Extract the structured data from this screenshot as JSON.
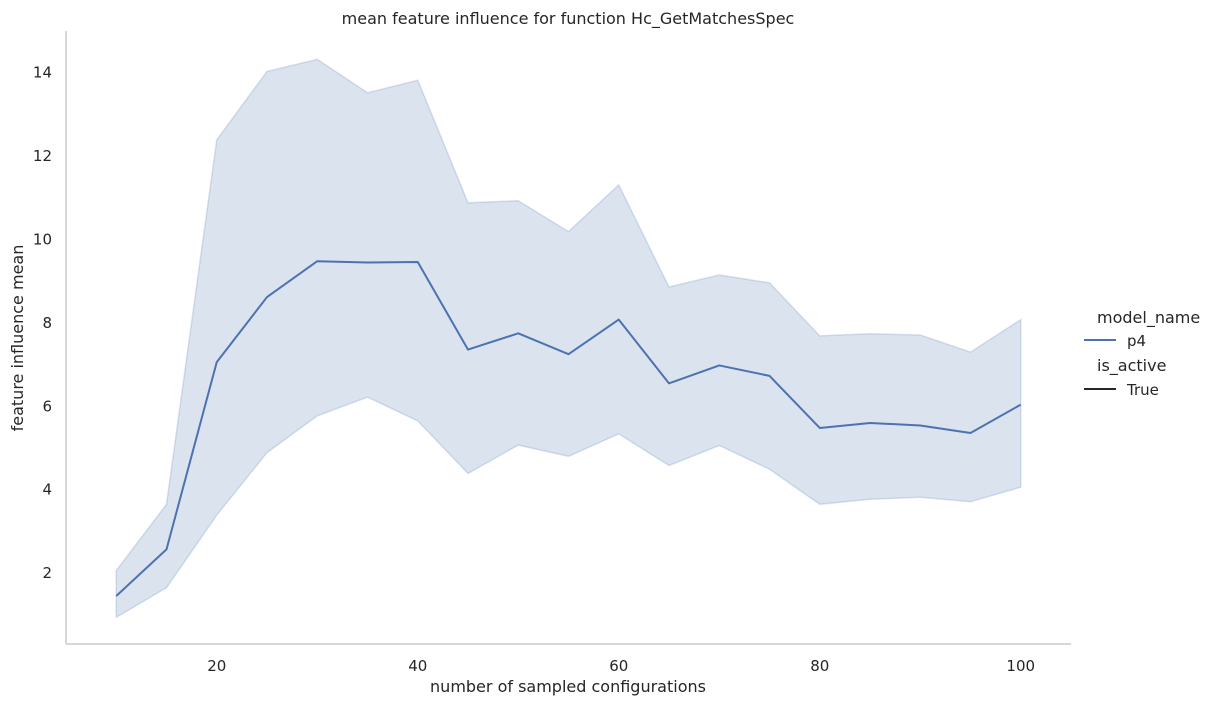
{
  "chart_data": {
    "type": "line",
    "title": "mean feature influence for function Hc_GetMatchesSpec",
    "xlabel": "number of sampled configurations",
    "ylabel": "feature influence mean",
    "x": [
      10,
      15,
      20,
      25,
      30,
      35,
      40,
      45,
      50,
      55,
      60,
      65,
      70,
      75,
      80,
      85,
      90,
      95,
      100
    ],
    "series": [
      {
        "name": "p4",
        "style": "True",
        "color": "#4c72b0",
        "values": [
          1.45,
          2.57,
          7.06,
          8.62,
          9.48,
          9.45,
          9.46,
          7.36,
          7.75,
          7.25,
          8.08,
          6.55,
          6.98,
          6.73,
          5.48,
          5.6,
          5.54,
          5.36,
          6.04
        ],
        "ci_upper": [
          2.06,
          3.65,
          12.39,
          14.03,
          14.32,
          13.52,
          13.82,
          10.88,
          10.93,
          10.19,
          11.31,
          8.86,
          9.15,
          8.96,
          7.69,
          7.74,
          7.71,
          7.3,
          8.08
        ],
        "ci_lower": [
          0.94,
          1.65,
          3.39,
          4.89,
          5.77,
          6.22,
          5.65,
          4.39,
          5.07,
          4.8,
          5.34,
          4.58,
          5.06,
          4.49,
          3.65,
          3.77,
          3.82,
          3.71,
          4.06
        ]
      }
    ],
    "xlim": [
      5,
      105
    ],
    "ylim": [
      0.3,
      15.0
    ],
    "xticks": [
      20,
      40,
      60,
      80,
      100
    ],
    "yticks": [
      2,
      4,
      6,
      8,
      10,
      12,
      14
    ],
    "grid": false,
    "legend": {
      "placement": "right",
      "hue_title": "model_name",
      "hue_entries": [
        "p4"
      ],
      "style_title": "is_active",
      "style_entries": [
        "True"
      ]
    },
    "colors": {
      "line": "#4c72b0",
      "band": "#4c72b0",
      "axis": "#cccccc",
      "text": "#262626"
    }
  }
}
